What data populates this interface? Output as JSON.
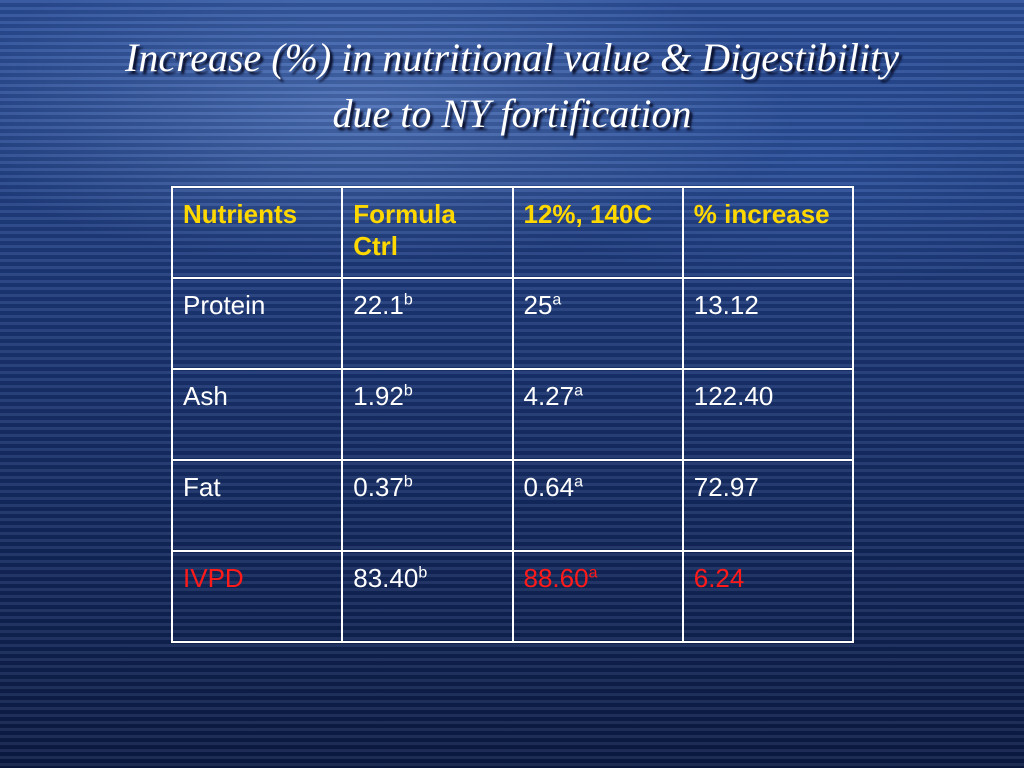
{
  "slide": {
    "title_line1": "Increase (%) in nutritional value & Digestibility",
    "title_line2": "due to NY fortification"
  },
  "table": {
    "headers": [
      "Nutrients",
      "Formula Ctrl",
      "12%, 140C",
      "% increase"
    ],
    "rows": [
      {
        "nutrient": "Protein",
        "ctrl": "22.1",
        "ctrl_sup": "b",
        "treated": "25",
        "treated_sup": "a",
        "increase": "13.12"
      },
      {
        "nutrient": "Ash",
        "ctrl": "1.92",
        "ctrl_sup": "b",
        "treated": "4.27",
        "treated_sup": "a",
        "increase": "122.40"
      },
      {
        "nutrient": "Fat",
        "ctrl": "0.37",
        "ctrl_sup": "b",
        "treated": "0.64",
        "treated_sup": "a",
        "increase": "72.97"
      },
      {
        "nutrient": "IVPD",
        "ctrl": "83.40",
        "ctrl_sup": "b",
        "treated": "88.60",
        "treated_sup": "a",
        "increase": "6.24"
      }
    ]
  },
  "colors": {
    "header_text": "#ffd800",
    "highlight": "#ff1a1a",
    "body_text": "#ffffff"
  }
}
